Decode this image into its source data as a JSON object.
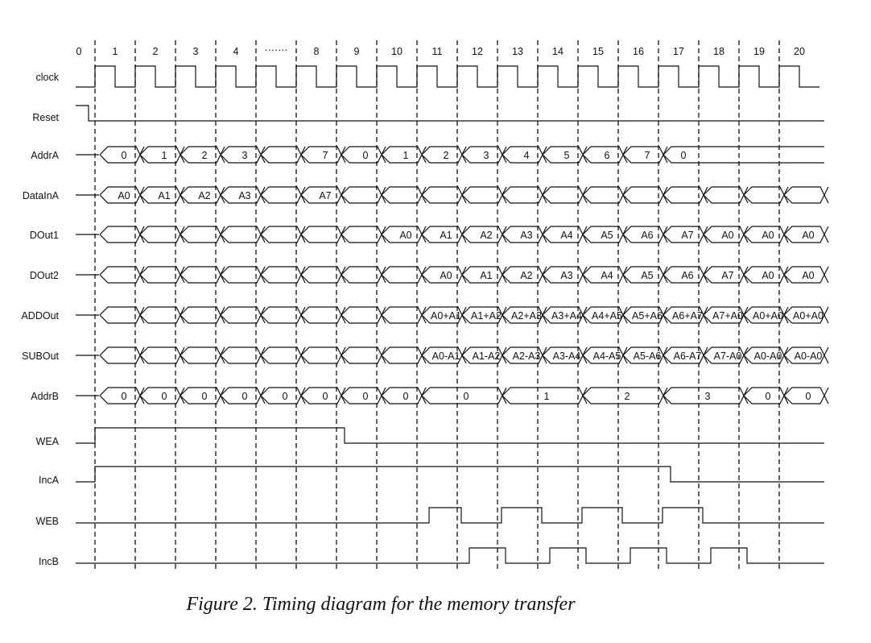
{
  "cycles": [
    "0",
    "1",
    "2",
    "3",
    "4",
    "8",
    "9",
    "10",
    "11",
    "12",
    "13",
    "14",
    "15",
    "16",
    "17",
    "18",
    "19",
    "20"
  ],
  "ellipsis": "·······",
  "caption": "Figure 2. Timing diagram for the memory transfer",
  "signals": [
    {
      "name": "clock",
      "type": "clock"
    },
    {
      "name": "Reset",
      "type": "reset"
    },
    {
      "name": "AddrA",
      "type": "bus",
      "cells": [
        {
          "a": 0,
          "b": 1,
          "v": "0"
        },
        {
          "a": 1,
          "b": 2,
          "v": "1"
        },
        {
          "a": 2,
          "b": 3,
          "v": "2"
        },
        {
          "a": 3,
          "b": 4,
          "v": "3"
        },
        {
          "a": 4,
          "b": 5,
          "v": ""
        },
        {
          "a": 5,
          "b": 6,
          "v": "7"
        },
        {
          "a": 6,
          "b": 7,
          "v": "0"
        },
        {
          "a": 7,
          "b": 8,
          "v": "1"
        },
        {
          "a": 8,
          "b": 9,
          "v": "2"
        },
        {
          "a": 9,
          "b": 10,
          "v": "3"
        },
        {
          "a": 10,
          "b": 11,
          "v": "4"
        },
        {
          "a": 11,
          "b": 12,
          "v": "5"
        },
        {
          "a": 12,
          "b": 13,
          "v": "6"
        },
        {
          "a": 13,
          "b": 14,
          "v": "7"
        },
        {
          "a": 14,
          "b": 15,
          "v": "0",
          "open": true
        }
      ]
    },
    {
      "name": "DataInA",
      "type": "bus",
      "cells": [
        {
          "a": 0,
          "b": 1,
          "v": "A0"
        },
        {
          "a": 1,
          "b": 2,
          "v": "A1"
        },
        {
          "a": 2,
          "b": 3,
          "v": "A2"
        },
        {
          "a": 3,
          "b": 4,
          "v": "A3"
        },
        {
          "a": 4,
          "b": 5,
          "v": ""
        },
        {
          "a": 5,
          "b": 6,
          "v": "A7"
        },
        {
          "a": 6,
          "b": 7,
          "v": ""
        },
        {
          "a": 7,
          "b": 8,
          "v": ""
        },
        {
          "a": 8,
          "b": 9,
          "v": ""
        },
        {
          "a": 9,
          "b": 10,
          "v": ""
        },
        {
          "a": 10,
          "b": 11,
          "v": ""
        },
        {
          "a": 11,
          "b": 12,
          "v": ""
        },
        {
          "a": 12,
          "b": 13,
          "v": ""
        },
        {
          "a": 13,
          "b": 14,
          "v": ""
        },
        {
          "a": 14,
          "b": 15,
          "v": ""
        },
        {
          "a": 15,
          "b": 16,
          "v": ""
        },
        {
          "a": 16,
          "b": 17,
          "v": ""
        },
        {
          "a": 17,
          "b": 18,
          "v": ""
        }
      ]
    },
    {
      "name": "DOut1",
      "type": "bus",
      "cells": [
        {
          "a": 0,
          "b": 1,
          "v": ""
        },
        {
          "a": 1,
          "b": 2,
          "v": ""
        },
        {
          "a": 2,
          "b": 3,
          "v": ""
        },
        {
          "a": 3,
          "b": 4,
          "v": ""
        },
        {
          "a": 4,
          "b": 5,
          "v": ""
        },
        {
          "a": 5,
          "b": 6,
          "v": ""
        },
        {
          "a": 6,
          "b": 7,
          "v": ""
        },
        {
          "a": 7,
          "b": 8,
          "v": "A0"
        },
        {
          "a": 8,
          "b": 9,
          "v": "A1"
        },
        {
          "a": 9,
          "b": 10,
          "v": "A2"
        },
        {
          "a": 10,
          "b": 11,
          "v": "A3"
        },
        {
          "a": 11,
          "b": 12,
          "v": "A4"
        },
        {
          "a": 12,
          "b": 13,
          "v": "A5"
        },
        {
          "a": 13,
          "b": 14,
          "v": "A6"
        },
        {
          "a": 14,
          "b": 15,
          "v": "A7"
        },
        {
          "a": 15,
          "b": 16,
          "v": "A0"
        },
        {
          "a": 16,
          "b": 17,
          "v": "A0"
        },
        {
          "a": 17,
          "b": 18,
          "v": "A0"
        }
      ]
    },
    {
      "name": "DOut2",
      "type": "bus",
      "cells": [
        {
          "a": 0,
          "b": 1,
          "v": ""
        },
        {
          "a": 1,
          "b": 2,
          "v": ""
        },
        {
          "a": 2,
          "b": 3,
          "v": ""
        },
        {
          "a": 3,
          "b": 4,
          "v": ""
        },
        {
          "a": 4,
          "b": 5,
          "v": ""
        },
        {
          "a": 5,
          "b": 6,
          "v": ""
        },
        {
          "a": 6,
          "b": 7,
          "v": ""
        },
        {
          "a": 7,
          "b": 8,
          "v": ""
        },
        {
          "a": 8,
          "b": 9,
          "v": "A0"
        },
        {
          "a": 9,
          "b": 10,
          "v": "A1"
        },
        {
          "a": 10,
          "b": 11,
          "v": "A2"
        },
        {
          "a": 11,
          "b": 12,
          "v": "A3"
        },
        {
          "a": 12,
          "b": 13,
          "v": "A4"
        },
        {
          "a": 13,
          "b": 14,
          "v": "A5"
        },
        {
          "a": 14,
          "b": 15,
          "v": "A6"
        },
        {
          "a": 15,
          "b": 16,
          "v": "A7"
        },
        {
          "a": 16,
          "b": 17,
          "v": "A0"
        },
        {
          "a": 17,
          "b": 18,
          "v": "A0"
        }
      ]
    },
    {
      "name": "ADDOut",
      "type": "bus",
      "cells": [
        {
          "a": 0,
          "b": 1,
          "v": ""
        },
        {
          "a": 1,
          "b": 2,
          "v": ""
        },
        {
          "a": 2,
          "b": 3,
          "v": ""
        },
        {
          "a": 3,
          "b": 4,
          "v": ""
        },
        {
          "a": 4,
          "b": 5,
          "v": ""
        },
        {
          "a": 5,
          "b": 6,
          "v": ""
        },
        {
          "a": 6,
          "b": 7,
          "v": ""
        },
        {
          "a": 7,
          "b": 8,
          "v": ""
        },
        {
          "a": 8,
          "b": 9,
          "v": "A0+A1"
        },
        {
          "a": 9,
          "b": 10,
          "v": "A1+A2"
        },
        {
          "a": 10,
          "b": 11,
          "v": "A2+A3"
        },
        {
          "a": 11,
          "b": 12,
          "v": "A3+A4"
        },
        {
          "a": 12,
          "b": 13,
          "v": "A4+A5"
        },
        {
          "a": 13,
          "b": 14,
          "v": "A5+A6"
        },
        {
          "a": 14,
          "b": 15,
          "v": "A6+A7"
        },
        {
          "a": 15,
          "b": 16,
          "v": "A7+A0"
        },
        {
          "a": 16,
          "b": 17,
          "v": "A0+A0"
        },
        {
          "a": 17,
          "b": 18,
          "v": "A0+A0"
        }
      ]
    },
    {
      "name": "SUBOut",
      "type": "bus",
      "cells": [
        {
          "a": 0,
          "b": 1,
          "v": ""
        },
        {
          "a": 1,
          "b": 2,
          "v": ""
        },
        {
          "a": 2,
          "b": 3,
          "v": ""
        },
        {
          "a": 3,
          "b": 4,
          "v": ""
        },
        {
          "a": 4,
          "b": 5,
          "v": ""
        },
        {
          "a": 5,
          "b": 6,
          "v": ""
        },
        {
          "a": 6,
          "b": 7,
          "v": ""
        },
        {
          "a": 7,
          "b": 8,
          "v": ""
        },
        {
          "a": 8,
          "b": 9,
          "v": "A0-A1"
        },
        {
          "a": 9,
          "b": 10,
          "v": "A1-A2"
        },
        {
          "a": 10,
          "b": 11,
          "v": "A2-A3"
        },
        {
          "a": 11,
          "b": 12,
          "v": "A3-A4"
        },
        {
          "a": 12,
          "b": 13,
          "v": "A4-A5"
        },
        {
          "a": 13,
          "b": 14,
          "v": "A5-A6"
        },
        {
          "a": 14,
          "b": 15,
          "v": "A6-A7"
        },
        {
          "a": 15,
          "b": 16,
          "v": "A7-A0"
        },
        {
          "a": 16,
          "b": 17,
          "v": "A0-A0"
        },
        {
          "a": 17,
          "b": 18,
          "v": "A0-A0"
        }
      ]
    },
    {
      "name": "AddrB",
      "type": "bus",
      "cells": [
        {
          "a": 0,
          "b": 1,
          "v": "0"
        },
        {
          "a": 1,
          "b": 2,
          "v": "0"
        },
        {
          "a": 2,
          "b": 3,
          "v": "0"
        },
        {
          "a": 3,
          "b": 4,
          "v": "0"
        },
        {
          "a": 4,
          "b": 5,
          "v": "0"
        },
        {
          "a": 5,
          "b": 6,
          "v": "0"
        },
        {
          "a": 6,
          "b": 7,
          "v": "0"
        },
        {
          "a": 7,
          "b": 8,
          "v": "0"
        },
        {
          "a": 8,
          "b": 10,
          "v": "0"
        },
        {
          "a": 10,
          "b": 12,
          "v": "1"
        },
        {
          "a": 12,
          "b": 14,
          "v": "2"
        },
        {
          "a": 14,
          "b": 16,
          "v": "3"
        },
        {
          "a": 16,
          "b": 17,
          "v": "0"
        },
        {
          "a": 17,
          "b": 18,
          "v": "0"
        }
      ]
    },
    {
      "name": "WEA",
      "type": "level",
      "segments": [
        [
          -1,
          0,
          0
        ],
        [
          0,
          6.2,
          1
        ],
        [
          6.2,
          18.2,
          0
        ]
      ]
    },
    {
      "name": "IncA",
      "type": "level",
      "segments": [
        [
          -1,
          0,
          0
        ],
        [
          0,
          14.3,
          1
        ],
        [
          14.3,
          18.2,
          0
        ]
      ]
    },
    {
      "name": "WEB",
      "type": "level",
      "segments": [
        [
          -1,
          8.3,
          0
        ],
        [
          8.3,
          9.1,
          1
        ],
        [
          9.1,
          10.1,
          0
        ],
        [
          10.1,
          11.1,
          1
        ],
        [
          11.1,
          12.1,
          0
        ],
        [
          12.1,
          13.1,
          1
        ],
        [
          13.1,
          14.1,
          0
        ],
        [
          14.1,
          15.1,
          1
        ],
        [
          15.1,
          18.2,
          0
        ]
      ]
    },
    {
      "name": "IncB",
      "type": "level",
      "segments": [
        [
          -1,
          9.3,
          0
        ],
        [
          9.3,
          10.2,
          1
        ],
        [
          10.2,
          11.3,
          0
        ],
        [
          11.3,
          12.2,
          1
        ],
        [
          12.2,
          13.3,
          0
        ],
        [
          13.3,
          14.2,
          1
        ],
        [
          14.2,
          15.3,
          0
        ],
        [
          15.3,
          16.2,
          1
        ],
        [
          16.2,
          18.2,
          0
        ]
      ]
    }
  ]
}
